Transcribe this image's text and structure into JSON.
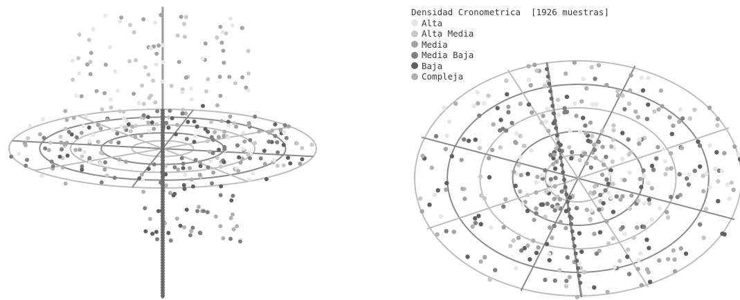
{
  "chart_data": {
    "type": "scatter",
    "title": "Densidad Cronometrica  [1926 muestras]",
    "legend_position": "top-left",
    "legend": [
      {
        "label": "Alta",
        "color": "#e6e6e6"
      },
      {
        "label": "Alta Media",
        "color": "#c8c8c8"
      },
      {
        "label": "Media",
        "color": "#a3a3a3"
      },
      {
        "label": "Media Baja",
        "color": "#808080"
      },
      {
        "label": "Baja",
        "color": "#606060"
      },
      {
        "label": "Compleja",
        "color": "#b0b0b0"
      }
    ],
    "views": [
      {
        "name": "side-view",
        "projection": "oblique"
      },
      {
        "name": "top-view",
        "projection": "tilted-top"
      }
    ],
    "polar_grid": {
      "rings": 5,
      "spokes": 8
    }
  },
  "colors": {
    "grid_dark": "#8a8a8a",
    "grid_light": "#bdbdbd",
    "axis": "#9a9a9a"
  }
}
